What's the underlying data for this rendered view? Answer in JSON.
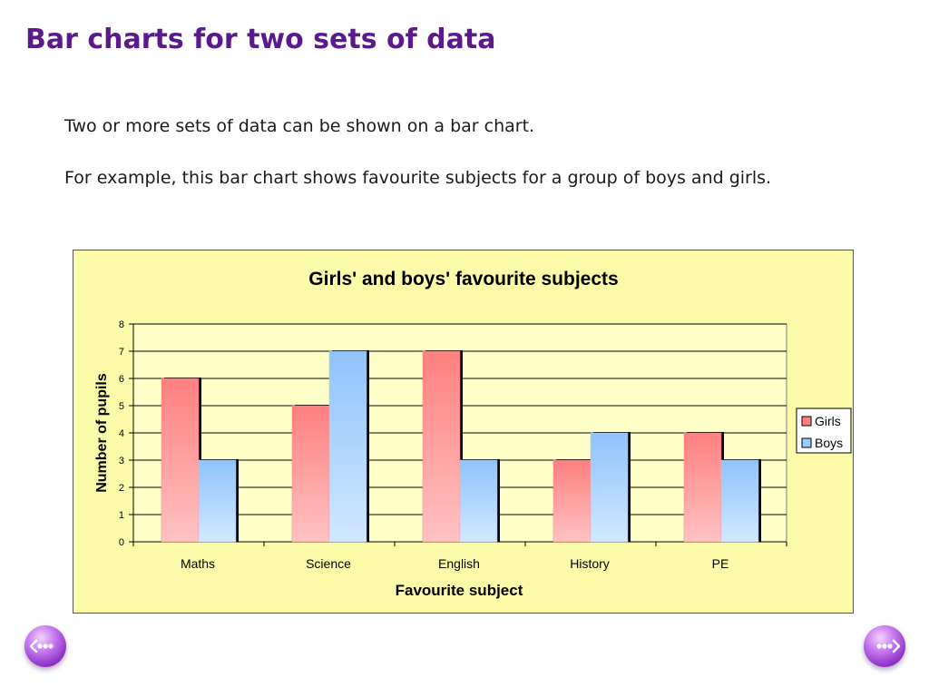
{
  "slide": {
    "title": "Bar charts for two sets of data",
    "paragraphs": [
      "Two or more sets of data can be shown on a bar chart.",
      "For example, this bar chart shows favourite subjects for a group of boys and girls."
    ]
  },
  "navigation": {
    "prev_icon": "left-arrow-icon",
    "next_icon": "right-arrow-icon"
  },
  "chart_data": {
    "type": "bar",
    "title": "Girls' and boys' favourite subjects",
    "xlabel": "Favourite subject",
    "ylabel": "Number of pupils",
    "categories": [
      "Maths",
      "Science",
      "English",
      "History",
      "PE"
    ],
    "series": [
      {
        "name": "Girls",
        "values": [
          6,
          5,
          7,
          3,
          4
        ],
        "color": "#ff8080"
      },
      {
        "name": "Boys",
        "values": [
          3,
          7,
          3,
          4,
          3
        ],
        "color": "#99ccff"
      }
    ],
    "ylim": [
      0,
      8
    ],
    "yticks": [
      0,
      1,
      2,
      3,
      4,
      5,
      6,
      7,
      8
    ],
    "grid": true,
    "legend_position": "right",
    "background_color": "#fafaa8"
  }
}
